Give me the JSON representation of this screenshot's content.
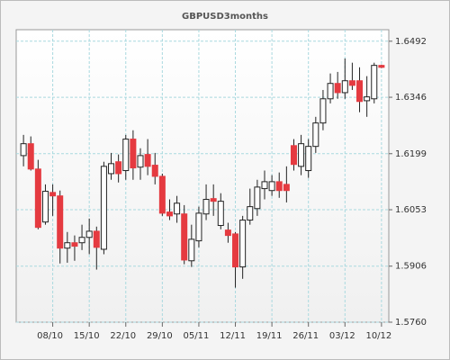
{
  "chart_data": {
    "type": "candlestick",
    "title": "GBPUSD3months",
    "x": [
      "02/10",
      "03/10",
      "04/10",
      "05/10",
      "08/10",
      "09/10",
      "10/10",
      "11/10",
      "12/10",
      "15/10",
      "16/10",
      "17/10",
      "18/10",
      "19/10",
      "22/10",
      "23/10",
      "24/10",
      "25/10",
      "26/10",
      "29/10",
      "30/10",
      "31/10",
      "01/11",
      "02/11",
      "05/11",
      "06/11",
      "07/11",
      "08/11",
      "09/11",
      "12/11",
      "13/11",
      "14/11",
      "15/11",
      "16/11",
      "19/11",
      "20/11",
      "21/11",
      "22/11",
      "23/11",
      "26/11",
      "27/11",
      "28/11",
      "29/11",
      "30/11",
      "03/12",
      "04/12",
      "05/12",
      "06/12",
      "07/12",
      "10/12"
    ],
    "open": [
      1.6194,
      1.6225,
      1.6159,
      1.6021,
      1.6098,
      1.6089,
      1.5953,
      1.5967,
      1.5967,
      1.5981,
      1.5997,
      1.595,
      1.6147,
      1.6178,
      1.6155,
      1.6237,
      1.6164,
      1.6197,
      1.6169,
      1.614,
      1.6047,
      1.6042,
      1.6042,
      1.592,
      1.5972,
      1.6042,
      1.6082,
      1.6012,
      1.6,
      1.599,
      1.5904,
      1.6026,
      1.6056,
      1.6108,
      1.6103,
      1.6126,
      1.6119,
      1.622,
      1.6166,
      1.6155,
      1.6218,
      1.6279,
      1.6342,
      1.6382,
      1.6358,
      1.6389,
      1.6389,
      1.6337,
      1.6342,
      1.6429
    ],
    "high": [
      1.6248,
      1.6244,
      1.6183,
      1.6119,
      1.6119,
      1.6103,
      1.5995,
      1.5986,
      1.6014,
      1.603,
      1.6009,
      1.6178,
      1.6201,
      1.6197,
      1.6248,
      1.626,
      1.6213,
      1.6237,
      1.6201,
      1.6147,
      1.608,
      1.6089,
      1.6065,
      1.6014,
      1.6061,
      1.6119,
      1.6119,
      1.6096,
      1.6019,
      1.5995,
      1.6037,
      1.6108,
      1.6131,
      1.6155,
      1.6143,
      1.615,
      1.6166,
      1.6237,
      1.6248,
      1.6237,
      1.6295,
      1.6365,
      1.6408,
      1.6412,
      1.6447,
      1.6436,
      1.6424,
      1.6401,
      1.6436,
      1.6431
    ],
    "low": [
      1.6166,
      1.6155,
      1.6002,
      1.6014,
      1.6037,
      1.5913,
      1.5915,
      1.592,
      1.5948,
      1.5937,
      1.5897,
      1.5937,
      1.6131,
      1.6124,
      1.6131,
      1.6131,
      1.6131,
      1.6143,
      1.6119,
      1.6037,
      1.6026,
      1.6019,
      1.5911,
      1.5904,
      1.5955,
      1.6026,
      1.6037,
      1.6002,
      1.5967,
      1.585,
      1.5873,
      1.6014,
      1.6037,
      1.608,
      1.6089,
      1.6084,
      1.6072,
      1.6155,
      1.6143,
      1.6136,
      1.6201,
      1.626,
      1.633,
      1.6342,
      1.6342,
      1.6365,
      1.6307,
      1.6295,
      1.633,
      1.6422
    ],
    "close": [
      1.6225,
      1.6159,
      1.6007,
      1.6101,
      1.6089,
      1.5953,
      1.5967,
      1.5958,
      1.5981,
      1.5997,
      1.5955,
      1.6166,
      1.6173,
      1.6147,
      1.6237,
      1.6162,
      1.6194,
      1.6166,
      1.614,
      1.6044,
      1.6037,
      1.607,
      1.5922,
      1.5976,
      1.6044,
      1.608,
      1.6075,
      1.6075,
      1.5986,
      1.5904,
      1.6026,
      1.6061,
      1.6112,
      1.6126,
      1.6126,
      1.6103,
      1.6103,
      1.6171,
      1.6225,
      1.6218,
      1.6279,
      1.6342,
      1.6382,
      1.6358,
      1.6389,
      1.6377,
      1.6335,
      1.6347,
      1.6429,
      1.6424
    ],
    "up_color": "#ffffff",
    "down_color": "#e53a40",
    "ylim": [
      1.576,
      1.6522
    ],
    "yticks": [
      {
        "value": 1.576,
        "label": "1.5760"
      },
      1.5906,
      1.6053,
      1.6199,
      1.6346,
      1.6492
    ],
    "xticks": [
      "08/10",
      "15/10",
      "22/10",
      "29/10",
      "05/11",
      "12/11",
      "19/11",
      "26/11",
      "03/12",
      "10/12"
    ],
    "grid": true
  }
}
